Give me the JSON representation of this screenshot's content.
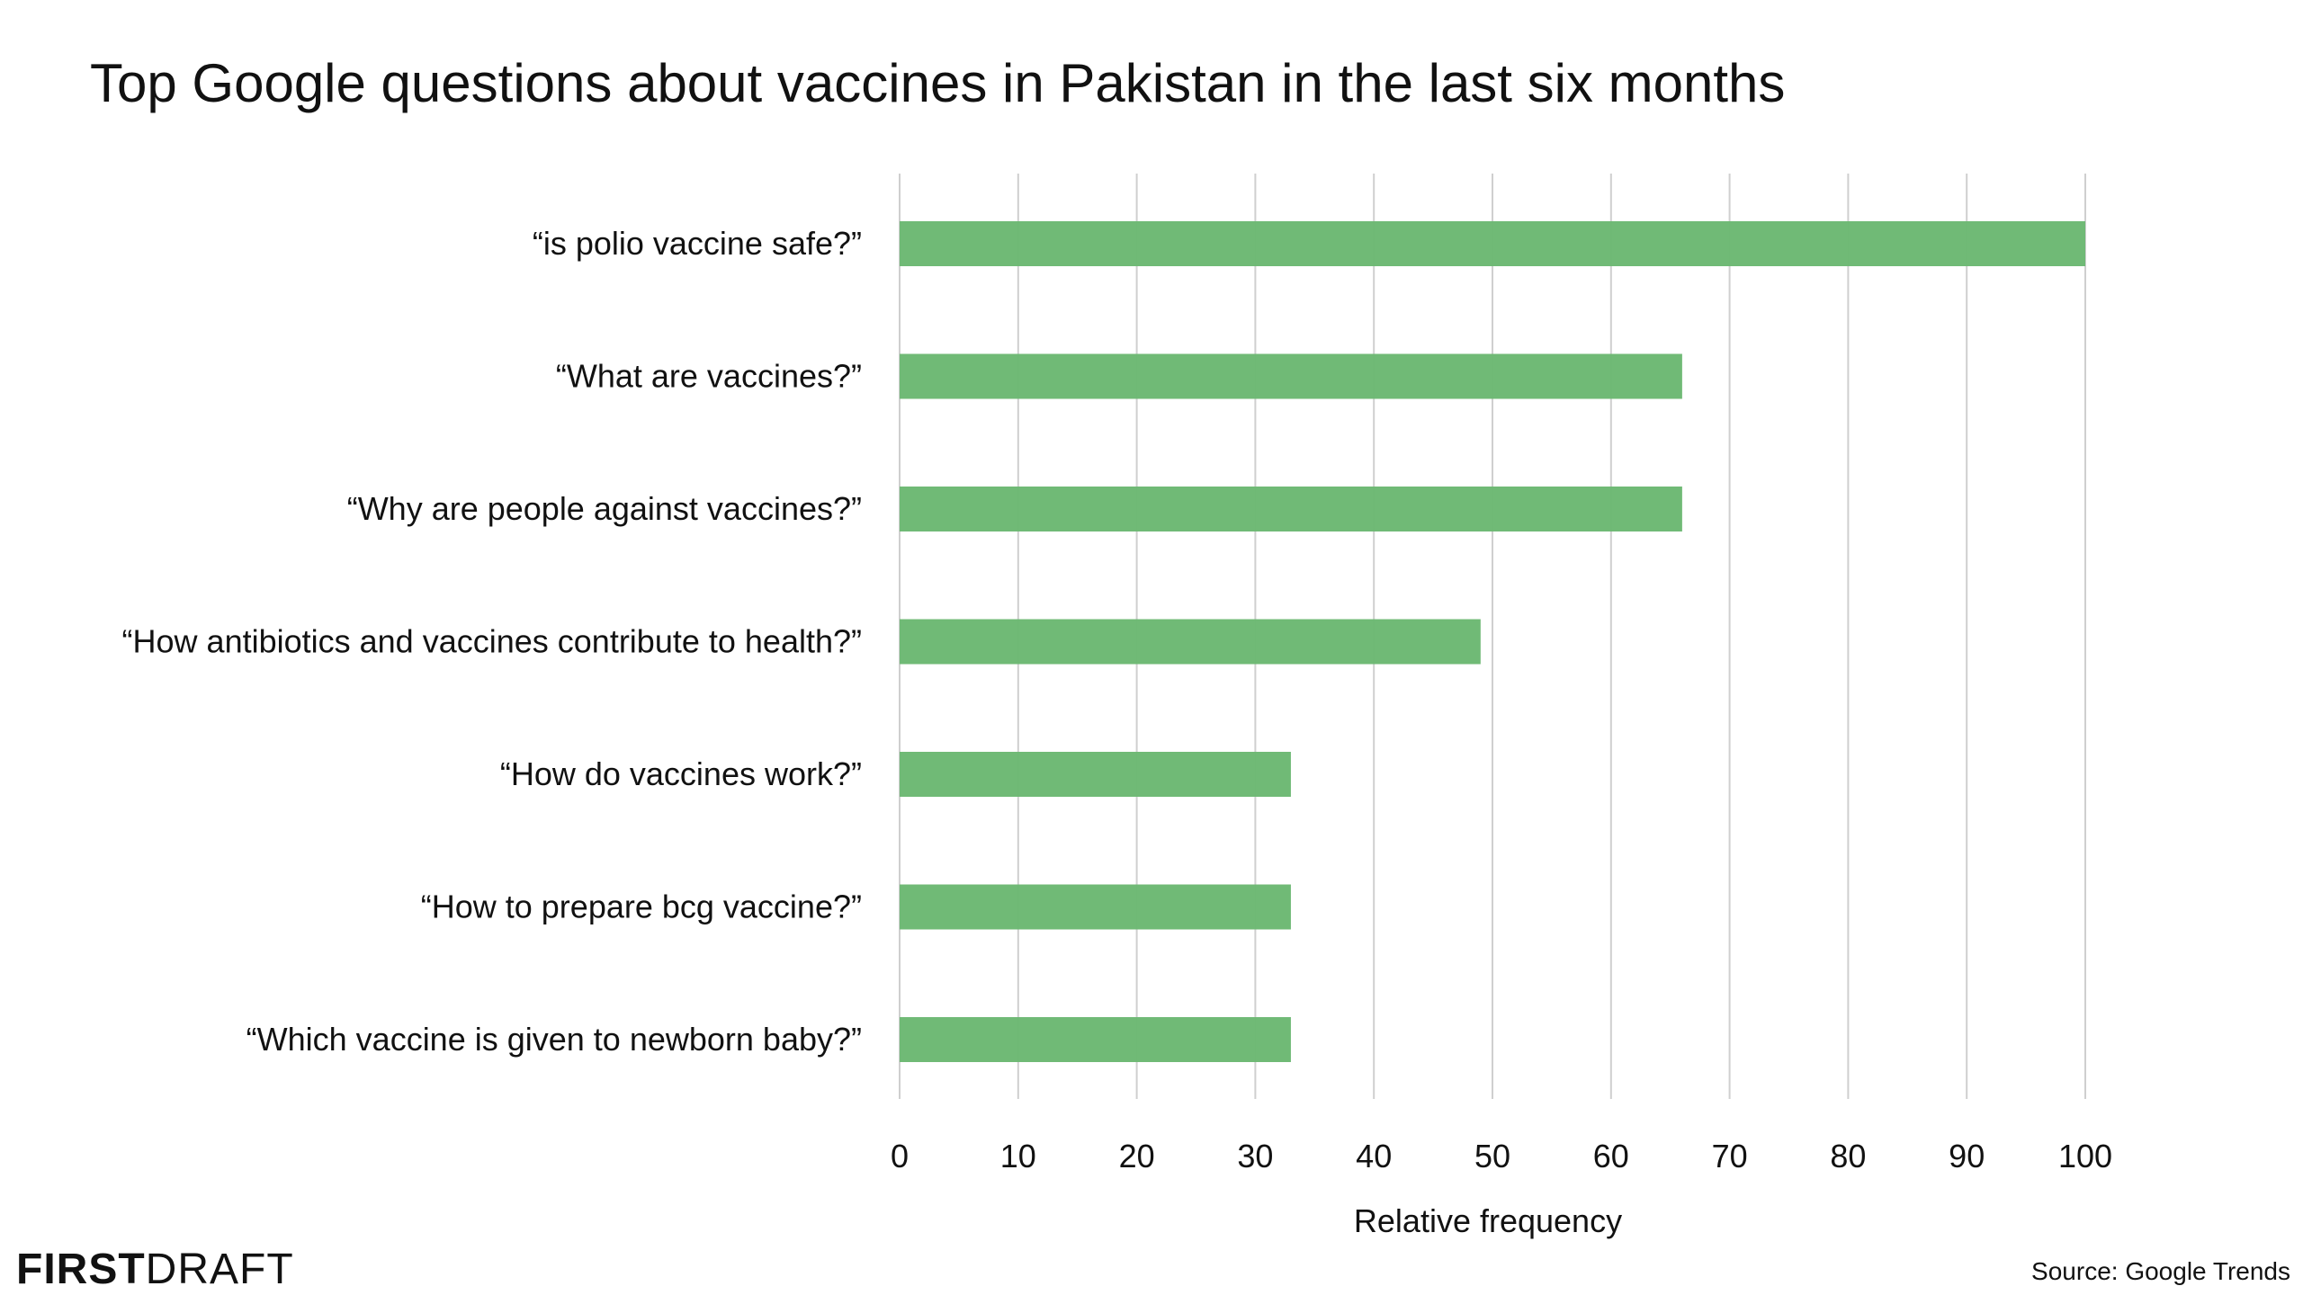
{
  "chart_data": {
    "type": "bar",
    "orientation": "horizontal",
    "title": "Top Google questions about vaccines in Pakistan in the last six months",
    "categories": [
      "“is polio vaccine safe?”",
      "“What are vaccines?”",
      "“Why are people against vaccines?”",
      "“How antibiotics and vaccines contribute to health?”",
      "“How do vaccines work?”",
      "“How to prepare bcg vaccine?”",
      "“Which vaccine is given to newborn baby?”"
    ],
    "values": [
      100,
      66,
      66,
      49,
      33,
      33,
      33
    ],
    "xlabel": "Relative frequency",
    "ylabel": "",
    "xlim": [
      0,
      100
    ],
    "xticks": [
      0,
      10,
      20,
      30,
      40,
      50,
      60,
      70,
      80,
      90,
      100
    ],
    "grid": true,
    "bar_color": "#6bb872"
  },
  "source": "Source: Google Trends",
  "logo": {
    "bold": "FIRST",
    "regular": "DRAFT"
  }
}
